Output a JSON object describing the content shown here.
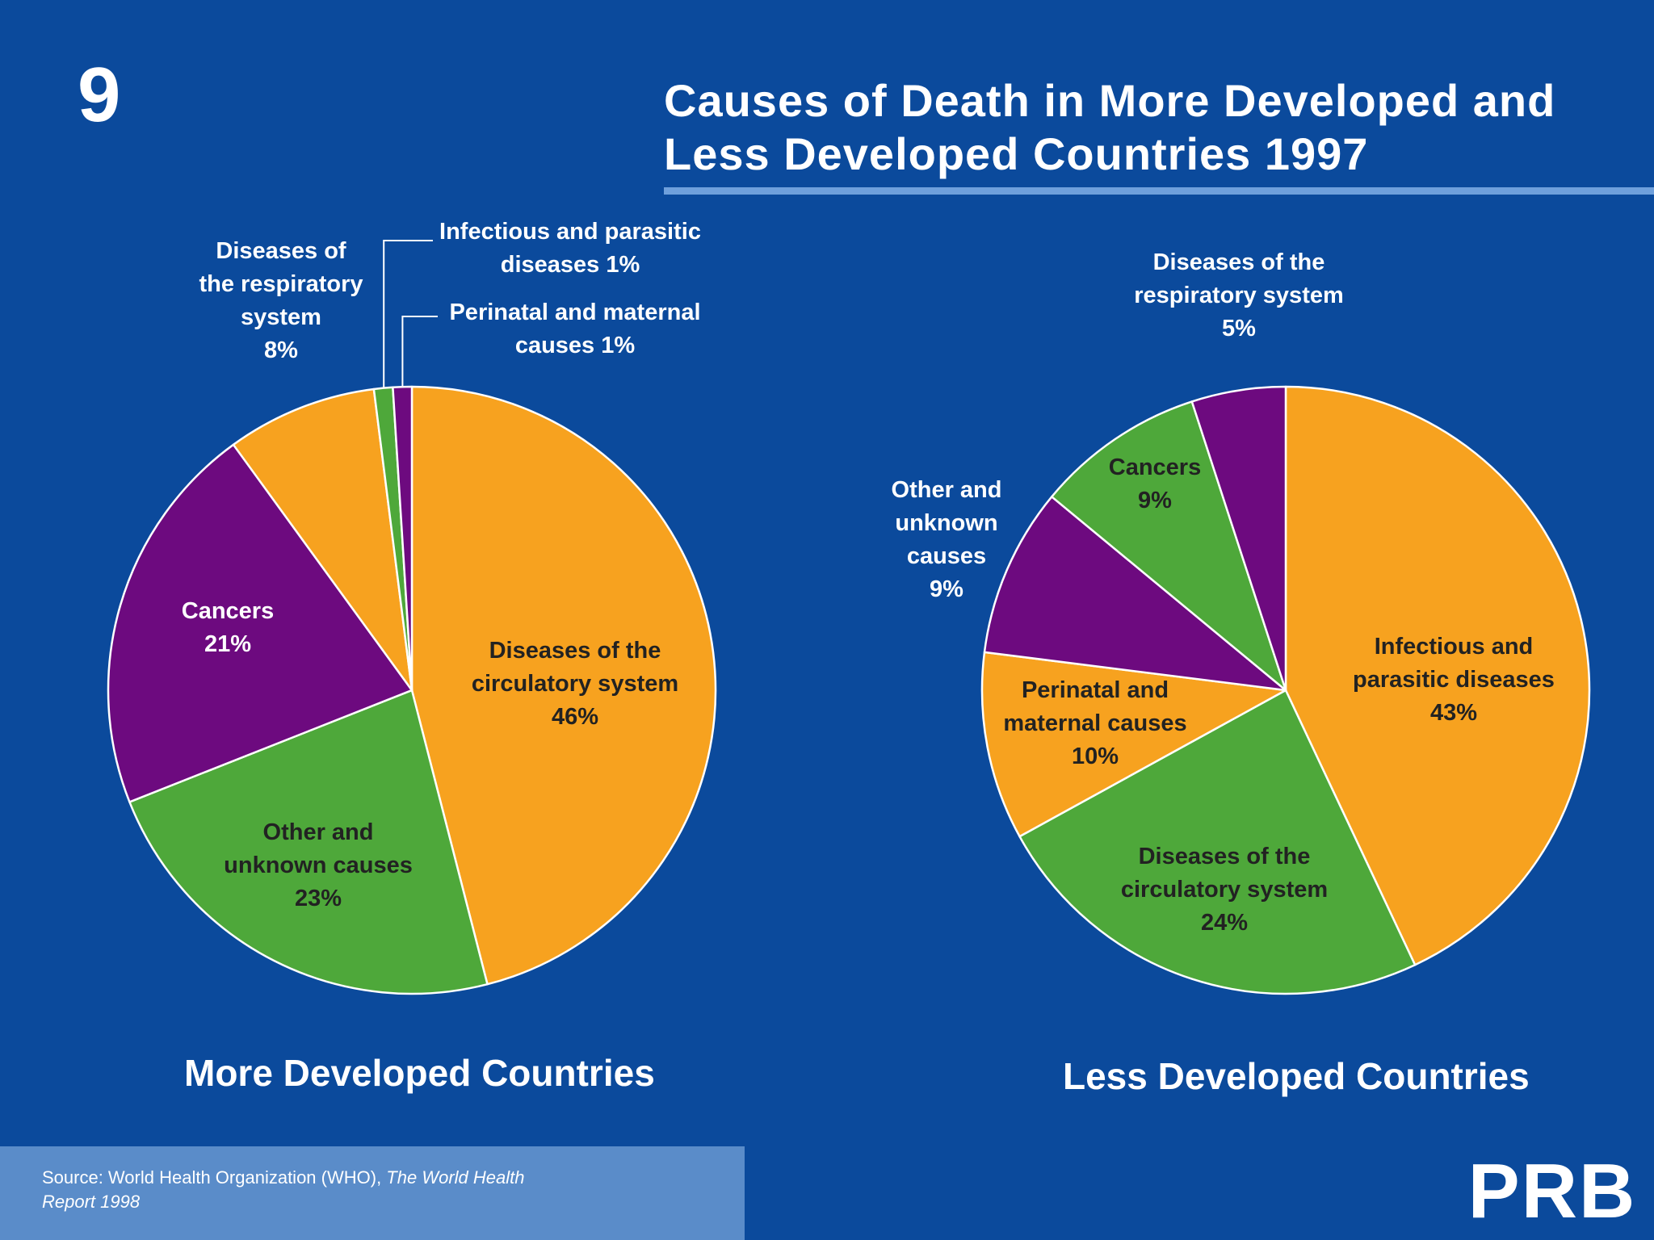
{
  "slide_number": "9",
  "title_lines": [
    "Causes of Death in More Developed and",
    "Less Developed Countries 1997"
  ],
  "source": {
    "prefix": "Source: World Health Organization (WHO), ",
    "italic_line1": "The World Health",
    "italic_line2": "Report 1998"
  },
  "logo_text": "PRB",
  "colors": {
    "background": "#0b4a9c",
    "orange": "#f7a21f",
    "green": "#4ea83a",
    "purple": "#6d0a7f",
    "footer": "#5a8cc9"
  },
  "chart_data": [
    {
      "type": "pie",
      "title": "More Developed Countries",
      "slices": [
        {
          "label": "Diseases of the circulatory system",
          "label_lines": [
            "Diseases of the",
            "circulatory system",
            "46%"
          ],
          "value": 46,
          "color": "orange"
        },
        {
          "label": "Other and unknown causes",
          "label_lines": [
            "Other and",
            "unknown causes",
            "23%"
          ],
          "value": 23,
          "color": "green"
        },
        {
          "label": "Cancers",
          "label_lines": [
            "Cancers",
            "21%"
          ],
          "value": 21,
          "color": "purple"
        },
        {
          "label": "Diseases of the respiratory system",
          "label_lines": [
            "Diseases of",
            "the respiratory",
            "system",
            "8%"
          ],
          "value": 8,
          "color": "orange"
        },
        {
          "label": "Infectious and parasitic diseases",
          "label_lines": [
            "Infectious and parasitic",
            "diseases 1%"
          ],
          "value": 1,
          "color": "green"
        },
        {
          "label": "Perinatal and maternal causes",
          "label_lines": [
            "Perinatal and maternal",
            "causes 1%"
          ],
          "value": 1,
          "color": "purple"
        }
      ]
    },
    {
      "type": "pie",
      "title": "Less Developed Countries",
      "slices": [
        {
          "label": "Infectious and parasitic diseases",
          "label_lines": [
            "Infectious and",
            "parasitic diseases",
            "43%"
          ],
          "value": 43,
          "color": "orange"
        },
        {
          "label": "Diseases of the circulatory system",
          "label_lines": [
            "Diseases of the",
            "circulatory system",
            "24%"
          ],
          "value": 24,
          "color": "green"
        },
        {
          "label": "Perinatal and maternal causes",
          "label_lines": [
            "Perinatal and",
            "maternal causes",
            "10%"
          ],
          "value": 10,
          "color": "orange"
        },
        {
          "label": "Other and unknown causes",
          "label_lines": [
            "Other and",
            "unknown",
            "causes",
            "9%"
          ],
          "value": 9,
          "color": "purple"
        },
        {
          "label": "Cancers",
          "label_lines": [
            "Cancers",
            "9%"
          ],
          "value": 9,
          "color": "green"
        },
        {
          "label": "Diseases of the respiratory system",
          "label_lines": [
            "Diseases of the",
            "respiratory system",
            "5%"
          ],
          "value": 5,
          "color": "purple"
        }
      ]
    }
  ]
}
